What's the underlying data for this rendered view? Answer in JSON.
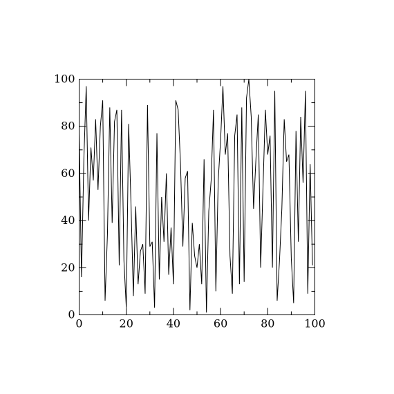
{
  "chart_data": {
    "type": "line",
    "title": "",
    "xlabel": "",
    "ylabel": "",
    "xlim": [
      0,
      100
    ],
    "ylim": [
      0,
      100
    ],
    "grid": false,
    "x_ticks": [
      "0",
      "20",
      "40",
      "60",
      "80",
      "100"
    ],
    "y_ticks": [
      "0",
      "20",
      "40",
      "60",
      "80",
      "100"
    ],
    "colors": {
      "line": "#000000",
      "axes": "#000000"
    },
    "series": [
      {
        "values": [
          77,
          16,
          66,
          97,
          40,
          71,
          57,
          83,
          53,
          80,
          91,
          6,
          34,
          88,
          39,
          82,
          87,
          21,
          87,
          23,
          3,
          81,
          47,
          8,
          46,
          13,
          27,
          30,
          9,
          89,
          29,
          31,
          3,
          77,
          15,
          50,
          31,
          60,
          17,
          37,
          13,
          91,
          87,
          64,
          29,
          58,
          61,
          2,
          39,
          25,
          20,
          30,
          13,
          66,
          1,
          44,
          57,
          87,
          10,
          57,
          74,
          97,
          68,
          77,
          25,
          9,
          76,
          85,
          13,
          88,
          14,
          92,
          100,
          84,
          45,
          66,
          85,
          20,
          54,
          87,
          68,
          76,
          20,
          95,
          6,
          23,
          45,
          83,
          65,
          68,
          24,
          5,
          78,
          31,
          84,
          56,
          95,
          9,
          64,
          21
        ]
      }
    ]
  }
}
